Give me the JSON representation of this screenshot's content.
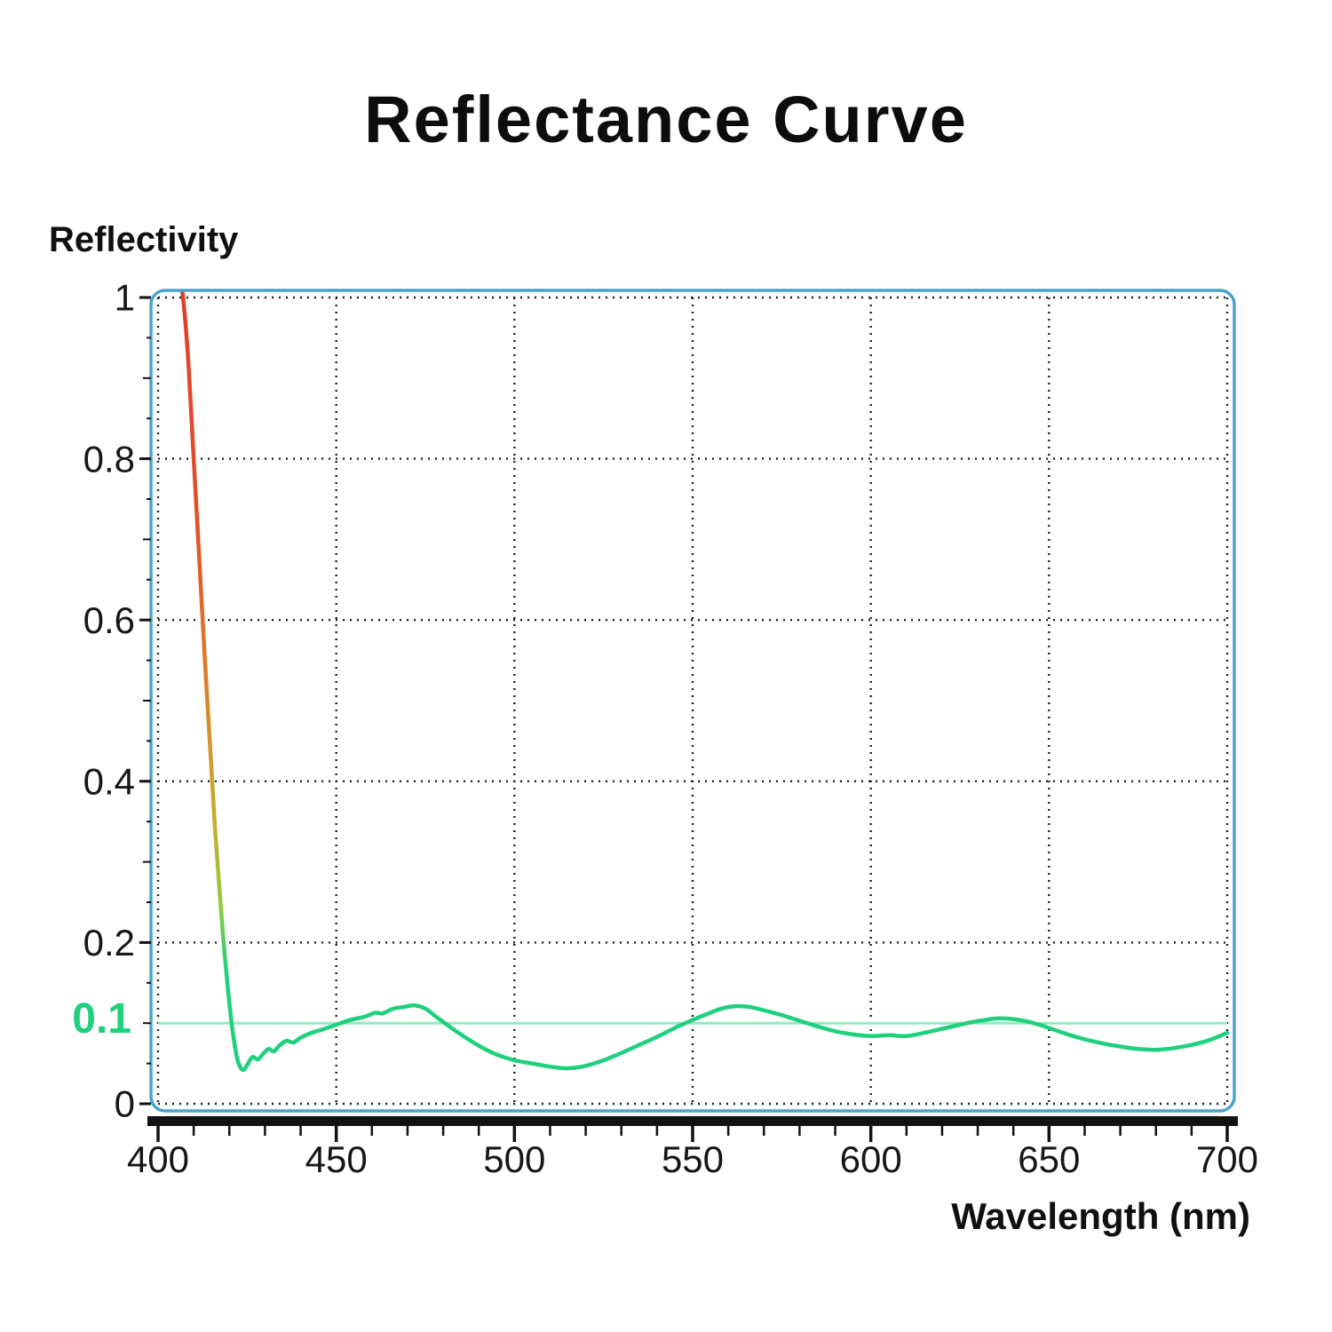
{
  "title": "Reflectance Curve",
  "y_axis_label": "Reflectivity",
  "x_axis_label": "Wavelength (nm)",
  "reference": {
    "label": "0.1",
    "value": 0.1
  },
  "colors": {
    "accent_green": "#1fd07d",
    "reference_line": "#93e9c3",
    "plot_border": "#4aa3cc",
    "grid": "#1f1f1f",
    "axis": "#111111",
    "text": "#161616",
    "background": "#ffffff"
  },
  "chart_data": {
    "type": "line",
    "title": "Reflectance Curve",
    "xlabel": "Wavelength (nm)",
    "ylabel": "Reflectivity",
    "xlim": [
      400,
      700
    ],
    "ylim": [
      0,
      1
    ],
    "x_ticks": [
      400,
      450,
      500,
      550,
      600,
      650,
      700
    ],
    "x_minor_step": 10,
    "y_ticks": [
      0,
      0.2,
      0.4,
      0.6,
      0.8,
      1
    ],
    "y_minor_step": 0.05,
    "grid": true,
    "grid_style": "dotted",
    "legend": "none",
    "reference_line_y": 0.1,
    "series": [
      {
        "name": "reflectance",
        "color": "#1fd07d",
        "points": [
          [
            405,
            1.06
          ],
          [
            407,
            1.0
          ],
          [
            408.5,
            0.92
          ],
          [
            410,
            0.8
          ],
          [
            411.5,
            0.68
          ],
          [
            413,
            0.56
          ],
          [
            414.5,
            0.45
          ],
          [
            416,
            0.34
          ],
          [
            417.5,
            0.25
          ],
          [
            419,
            0.17
          ],
          [
            420.5,
            0.105
          ],
          [
            422,
            0.06
          ],
          [
            423,
            0.046
          ],
          [
            424,
            0.042
          ],
          [
            425,
            0.048
          ],
          [
            426.5,
            0.058
          ],
          [
            428,
            0.055
          ],
          [
            429.5,
            0.062
          ],
          [
            431,
            0.068
          ],
          [
            432.5,
            0.065
          ],
          [
            434,
            0.072
          ],
          [
            436,
            0.078
          ],
          [
            438,
            0.076
          ],
          [
            440,
            0.082
          ],
          [
            443,
            0.088
          ],
          [
            446,
            0.092
          ],
          [
            450,
            0.098
          ],
          [
            454,
            0.104
          ],
          [
            458,
            0.108
          ],
          [
            461,
            0.113
          ],
          [
            463,
            0.112
          ],
          [
            466,
            0.118
          ],
          [
            469,
            0.12
          ],
          [
            472,
            0.122
          ],
          [
            475,
            0.118
          ],
          [
            478,
            0.108
          ],
          [
            482,
            0.095
          ],
          [
            486,
            0.083
          ],
          [
            490,
            0.072
          ],
          [
            495,
            0.061
          ],
          [
            500,
            0.054
          ],
          [
            505,
            0.05
          ],
          [
            510,
            0.046
          ],
          [
            515,
            0.044
          ],
          [
            520,
            0.047
          ],
          [
            525,
            0.054
          ],
          [
            530,
            0.063
          ],
          [
            535,
            0.073
          ],
          [
            540,
            0.083
          ],
          [
            545,
            0.094
          ],
          [
            550,
            0.104
          ],
          [
            555,
            0.113
          ],
          [
            558,
            0.118
          ],
          [
            562,
            0.121
          ],
          [
            566,
            0.12
          ],
          [
            570,
            0.116
          ],
          [
            575,
            0.11
          ],
          [
            580,
            0.103
          ],
          [
            585,
            0.096
          ],
          [
            590,
            0.09
          ],
          [
            595,
            0.086
          ],
          [
            600,
            0.084
          ],
          [
            605,
            0.085
          ],
          [
            610,
            0.084
          ],
          [
            615,
            0.088
          ],
          [
            620,
            0.093
          ],
          [
            625,
            0.098
          ],
          [
            628,
            0.101
          ],
          [
            632,
            0.104
          ],
          [
            636,
            0.106
          ],
          [
            640,
            0.105
          ],
          [
            644,
            0.102
          ],
          [
            648,
            0.097
          ],
          [
            652,
            0.091
          ],
          [
            656,
            0.085
          ],
          [
            660,
            0.08
          ],
          [
            665,
            0.075
          ],
          [
            670,
            0.071
          ],
          [
            675,
            0.068
          ],
          [
            680,
            0.067
          ],
          [
            685,
            0.069
          ],
          [
            690,
            0.073
          ],
          [
            695,
            0.079
          ],
          [
            700,
            0.088
          ]
        ]
      }
    ],
    "gradient": {
      "value_top": 1.05,
      "value_bottom": 0.16,
      "stops": [
        {
          "offset": 0,
          "color": "#e5392a"
        },
        {
          "offset": 0.38,
          "color": "#e25127"
        },
        {
          "offset": 0.6,
          "color": "#de8127"
        },
        {
          "offset": 0.78,
          "color": "#ccab2b"
        },
        {
          "offset": 0.9,
          "color": "#93c93a"
        },
        {
          "offset": 1,
          "color": "#1fd07d"
        }
      ]
    }
  }
}
